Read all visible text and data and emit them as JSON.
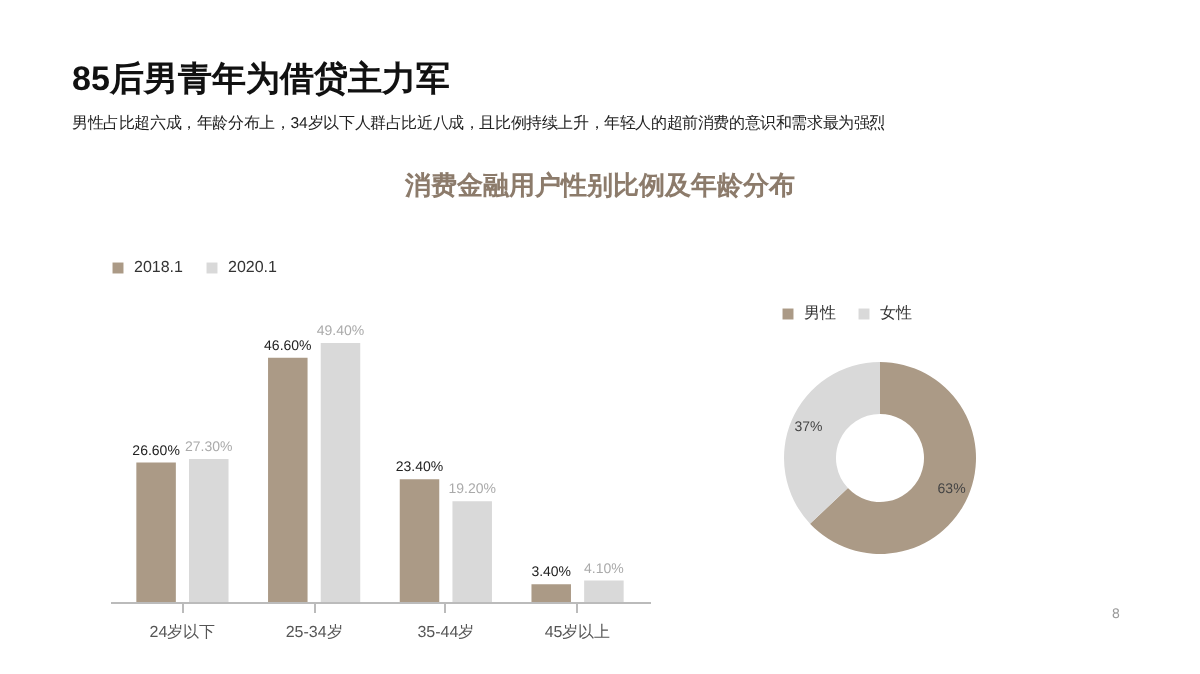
{
  "chart_data": [
    {
      "type": "bar",
      "title": "85后男青年为借贷主力军",
      "subtitle": "男性占比超六成，年龄分布上，34岁以下人群占比近八成，且比例持续上升，年轻人的超前消费的意识和需求最为强烈",
      "annotations": [
        "消费金融用户性别比例及年龄分布"
      ],
      "categories": [
        "24岁以下",
        "25-34岁",
        "35-44岁",
        "45岁以上"
      ],
      "series": [
        {
          "name": "2018.1",
          "color": "#ab9a86",
          "values": [
            26.6,
            46.6,
            23.4,
            3.4
          ],
          "value_labels": [
            "26.60%",
            "46.60%",
            "23.40%",
            "3.40%"
          ]
        },
        {
          "name": "2020.1",
          "color": "#d9d9d9",
          "values": [
            27.3,
            49.4,
            19.2,
            4.1
          ],
          "value_labels": [
            "27.30%",
            "49.40%",
            "19.20%",
            "4.10%"
          ]
        }
      ],
      "legend": "top",
      "grid": false
    },
    {
      "type": "donut",
      "categories": [
        "男性",
        "女性"
      ],
      "values": [
        63,
        37
      ],
      "colors": [
        "#ab9a86",
        "#d9d9d9"
      ],
      "value_labels": [
        "63%",
        "37%"
      ],
      "legend": "top",
      "annotations": [
        "8"
      ]
    }
  ]
}
